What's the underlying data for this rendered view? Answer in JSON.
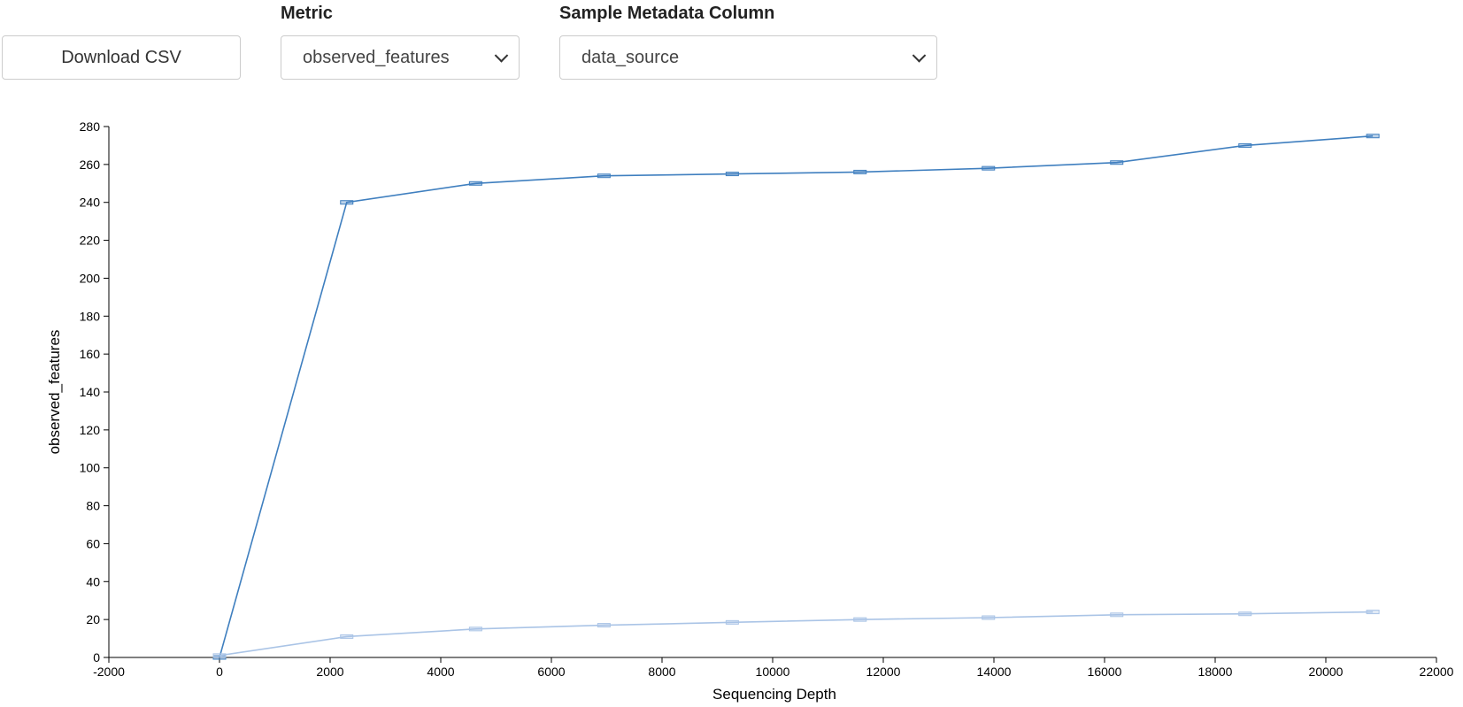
{
  "controls": {
    "download_label": "Download CSV",
    "metric_label": "Metric",
    "metric_value": "observed_features",
    "metadata_label": "Sample Metadata Column",
    "metadata_value": "data_source"
  },
  "chart_data": {
    "type": "line",
    "xlabel": "Sequencing Depth",
    "ylabel": "observed_features",
    "xlim": [
      -2000,
      22000
    ],
    "ylim": [
      0,
      280
    ],
    "xticks": [
      -2000,
      0,
      2000,
      4000,
      6000,
      8000,
      10000,
      12000,
      14000,
      16000,
      18000,
      20000,
      22000
    ],
    "yticks": [
      0,
      20,
      40,
      60,
      80,
      100,
      120,
      140,
      160,
      180,
      200,
      220,
      240,
      260,
      280
    ],
    "grid": false,
    "series": [
      {
        "color": "#3f7fbf",
        "points": [
          {
            "x": 0,
            "y": 0
          },
          {
            "x": 2300,
            "y": 240
          },
          {
            "x": 4630,
            "y": 250
          },
          {
            "x": 6950,
            "y": 254
          },
          {
            "x": 9270,
            "y": 255
          },
          {
            "x": 11580,
            "y": 256
          },
          {
            "x": 13900,
            "y": 258
          },
          {
            "x": 16220,
            "y": 261
          },
          {
            "x": 18540,
            "y": 270
          },
          {
            "x": 20850,
            "y": 275
          }
        ]
      },
      {
        "color": "#aac4e6",
        "points": [
          {
            "x": 0,
            "y": 1
          },
          {
            "x": 2300,
            "y": 11
          },
          {
            "x": 4630,
            "y": 15
          },
          {
            "x": 6950,
            "y": 17
          },
          {
            "x": 9270,
            "y": 18.5
          },
          {
            "x": 11580,
            "y": 20
          },
          {
            "x": 13900,
            "y": 21
          },
          {
            "x": 16220,
            "y": 22.5
          },
          {
            "x": 18540,
            "y": 23
          },
          {
            "x": 20850,
            "y": 24
          }
        ]
      }
    ]
  }
}
